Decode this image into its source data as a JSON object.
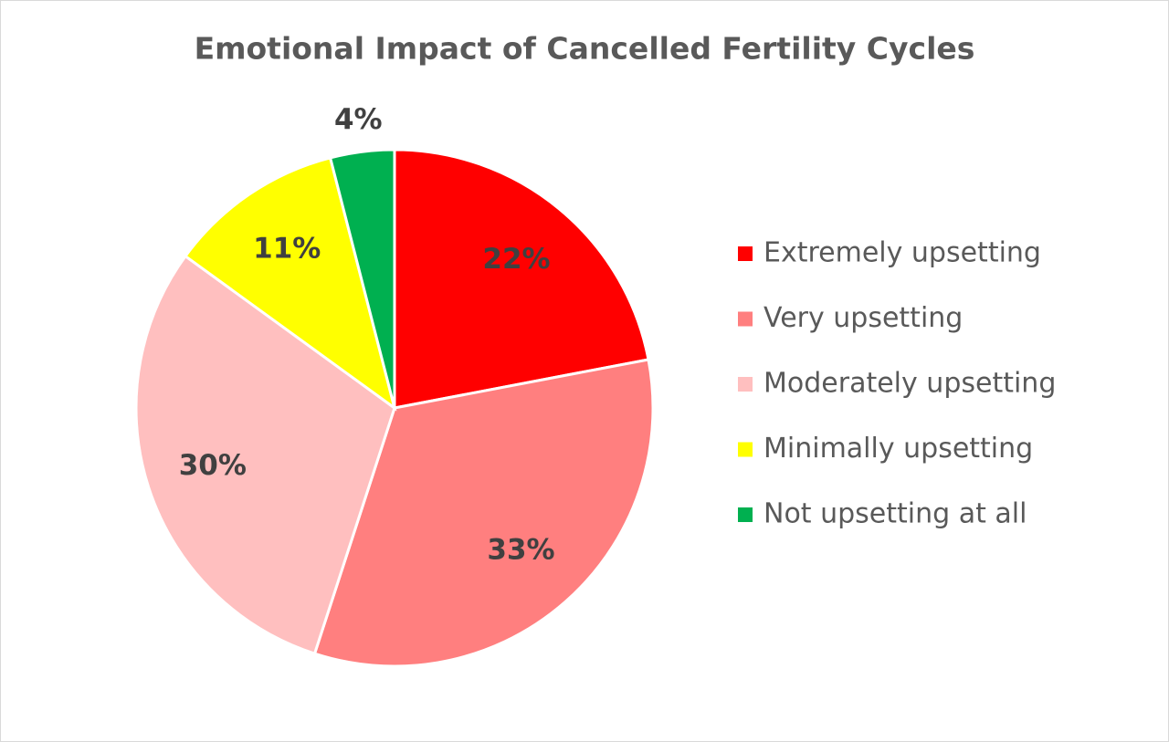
{
  "chart_data": {
    "type": "pie",
    "title": "Emotional Impact of Cancelled Fertility Cycles",
    "categories": [
      "Extremely upsetting",
      "Very upsetting",
      "Moderately upsetting",
      "Minimally upsetting",
      "Not upsetting at all"
    ],
    "values": [
      22,
      33,
      30,
      11,
      4
    ],
    "value_labels": [
      "22%",
      "33%",
      "30%",
      "11%",
      "4%"
    ],
    "colors": [
      "#ff0000",
      "#ff7f7f",
      "#ffbfbf",
      "#ffff00",
      "#00b050"
    ],
    "legend": "right"
  }
}
